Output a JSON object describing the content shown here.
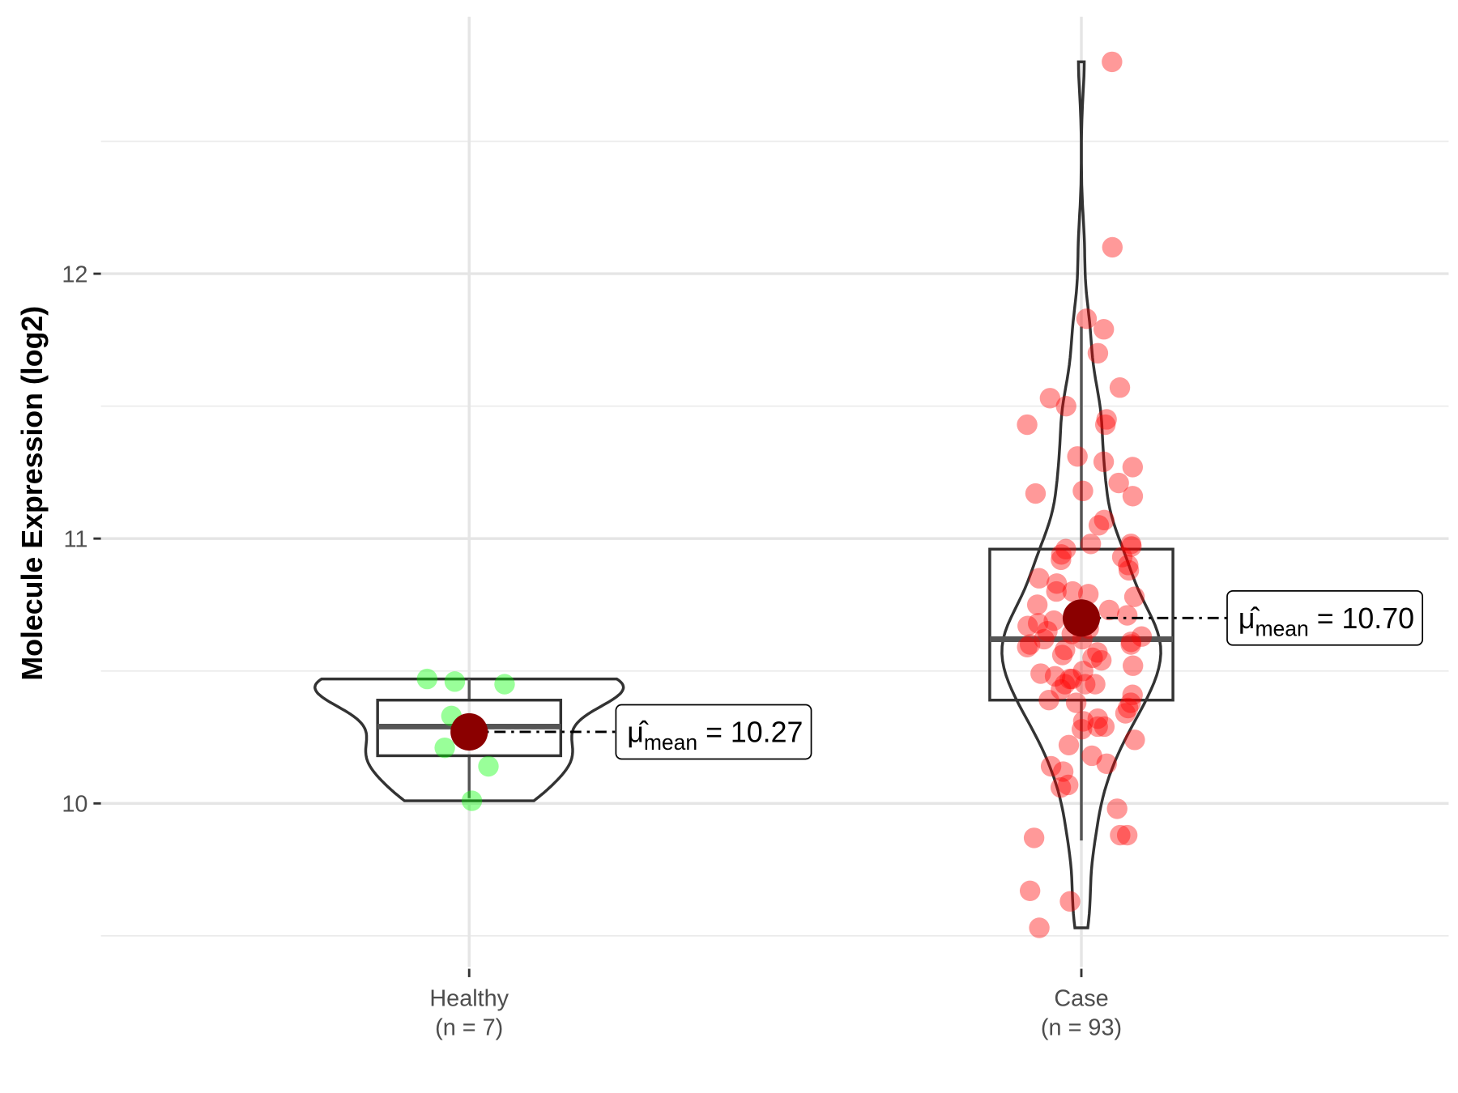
{
  "chart_data": {
    "type": "violin",
    "title": "",
    "xlabel": "",
    "ylabel": "Molecule Expression (log2)",
    "ylim": [
      9.42,
      12.88
    ],
    "yticks": [
      10,
      11,
      12
    ],
    "ytick_labels": [
      "10",
      "11",
      "12"
    ],
    "minor_gridlines": [
      9.5,
      10.5,
      11.5,
      12.5
    ],
    "grid": true,
    "groups": [
      {
        "name": "Healthy",
        "n_label": "(n = 7)",
        "color": "#00FF00",
        "mean": 10.27,
        "mean_label": "10.27",
        "box": {
          "q1": 10.18,
          "median": 10.29,
          "q3": 10.39,
          "whisker_low": 10.02,
          "whisker_high": 10.47
        },
        "points": [
          10.47,
          10.45,
          10.33,
          10.21,
          10.14,
          10.01,
          10.46
        ]
      },
      {
        "name": "Case",
        "n_label": "(n = 93)",
        "color": "#FF0000",
        "mean": 10.7,
        "mean_label": "10.70",
        "box": {
          "q1": 10.39,
          "median": 10.62,
          "q3": 10.96,
          "whisker_low": 9.86,
          "whisker_high": 11.8
        },
        "points": [
          12.8,
          12.1,
          11.83,
          11.79,
          11.7,
          11.57,
          11.53,
          11.5,
          11.45,
          11.43,
          11.43,
          11.29,
          11.31,
          11.27,
          11.21,
          11.17,
          11.18,
          11.16,
          11.07,
          11.05,
          10.98,
          10.97,
          10.98,
          10.96,
          10.94,
          10.93,
          10.92,
          10.85,
          10.83,
          10.8,
          10.8,
          10.78,
          10.79,
          10.73,
          10.71,
          10.67,
          10.69,
          10.66,
          10.62,
          10.64,
          10.62,
          10.61,
          10.59,
          10.58,
          10.56,
          10.54,
          10.52,
          10.5,
          10.49,
          10.47,
          10.48,
          10.45,
          10.47,
          10.43,
          10.45,
          10.45,
          10.39,
          10.38,
          10.38,
          10.34,
          10.32,
          10.29,
          10.31,
          10.28,
          10.29,
          10.24,
          10.22,
          10.15,
          10.14,
          10.18,
          10.12,
          10.06,
          10.07,
          9.98,
          9.88,
          9.87,
          9.88,
          9.67,
          9.63,
          9.53,
          10.6,
          10.63,
          10.65,
          10.57,
          10.68,
          10.72,
          10.55,
          10.75,
          10.41,
          10.36,
          10.88,
          10.9,
          10.6
        ]
      }
    ],
    "mean_symbol": "μ̂",
    "mean_subscript": "mean",
    "mean_color": "#8B0000"
  }
}
